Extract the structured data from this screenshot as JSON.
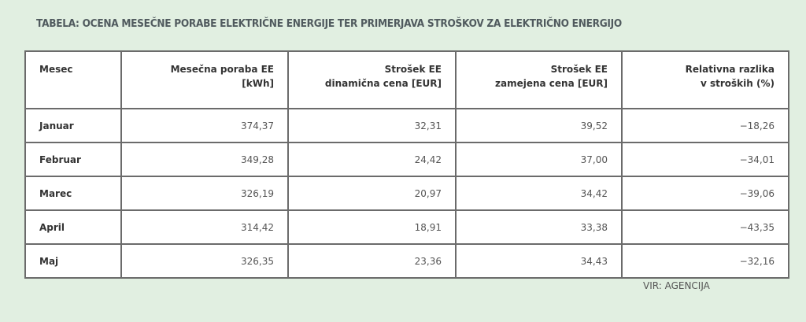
{
  "title": "TABELA: OCENA MESEČNE PORABE ELEKTRIČNE ENERGIJE TER PRIMERJAVA STROŠKOV ZA ELEKTRIČNO ENERGIJO",
  "table": {
    "headers": [
      {
        "l1": "Mesec",
        "l2": ""
      },
      {
        "l1": "Mesečna poraba EE",
        "l2": "[kWh]"
      },
      {
        "l1": "Strošek EE",
        "l2": "dinamična cena [EUR]"
      },
      {
        "l1": "Strošek EE",
        "l2": "zamejena cena [EUR]"
      },
      {
        "l1": "Relativna razlika",
        "l2": "v stroških (%)"
      }
    ],
    "rows": [
      [
        "Januar",
        "374,37",
        "32,31",
        "39,52",
        "−18,26"
      ],
      [
        "Februar",
        "349,28",
        "24,42",
        "37,00",
        "−34,01"
      ],
      [
        "Marec",
        "326,19",
        "20,97",
        "34,42",
        "−39,06"
      ],
      [
        "April",
        "314,42",
        "18,91",
        "33,38",
        "−43,35"
      ],
      [
        "Maj",
        "326,35",
        "23,36",
        "34,43",
        "−32,16"
      ]
    ]
  },
  "source": "VIR: AGENCIJA"
}
